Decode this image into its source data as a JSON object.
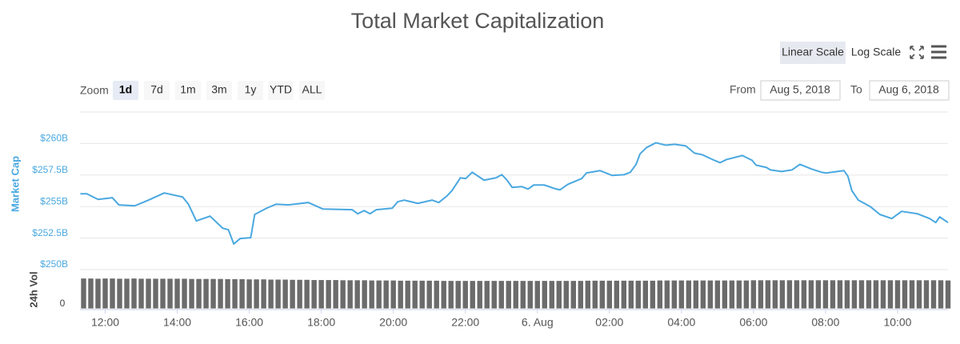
{
  "chart_data": {
    "type": "line",
    "title": "Total Market Capitalization",
    "y_label": "Market Cap",
    "color": "#4aa8e0",
    "grid": true,
    "xlim": [
      11.3,
      35.4
    ],
    "ylim": [
      250,
      262.5
    ],
    "yticks": [
      {
        "value": 250,
        "label": "$250B"
      },
      {
        "value": 252.5,
        "label": "$252.5B"
      },
      {
        "value": 255,
        "label": "$255B"
      },
      {
        "value": 257.5,
        "label": "$257.5B"
      },
      {
        "value": 260,
        "label": "$260B"
      }
    ],
    "xticks": [
      {
        "value": 12,
        "label": "12:00"
      },
      {
        "value": 14,
        "label": "14:00"
      },
      {
        "value": 16,
        "label": "16:00"
      },
      {
        "value": 18,
        "label": "18:00"
      },
      {
        "value": 20,
        "label": "20:00"
      },
      {
        "value": 22,
        "label": "22:00"
      },
      {
        "value": 24,
        "label": "6. Aug"
      },
      {
        "value": 26,
        "label": "02:00"
      },
      {
        "value": 28,
        "label": "04:00"
      },
      {
        "value": 30,
        "label": "06:00"
      },
      {
        "value": 32,
        "label": "08:00"
      },
      {
        "value": 34,
        "label": "10:00"
      }
    ],
    "x": [
      11.31,
      11.49,
      11.8,
      12.2,
      12.38,
      12.82,
      13.2,
      13.64,
      14.15,
      14.31,
      14.53,
      14.91,
      15.26,
      15.42,
      15.57,
      15.75,
      16.04,
      16.15,
      16.48,
      16.75,
      17.08,
      17.64,
      18.04,
      18.86,
      19.01,
      19.19,
      19.35,
      19.53,
      19.97,
      20.12,
      20.3,
      20.68,
      21.08,
      21.26,
      21.48,
      21.63,
      21.86,
      22.01,
      22.19,
      22.52,
      22.85,
      23.01,
      23.14,
      23.3,
      23.57,
      23.74,
      23.9,
      24.19,
      24.52,
      24.63,
      24.85,
      25.23,
      25.36,
      25.74,
      26.07,
      26.41,
      26.58,
      26.74,
      26.85,
      27.03,
      27.29,
      27.56,
      27.81,
      28.12,
      28.36,
      28.58,
      28.91,
      29.07,
      29.25,
      29.69,
      29.96,
      30.07,
      30.36,
      30.47,
      30.78,
      31.07,
      31.29,
      31.62,
      31.89,
      32.02,
      32.51,
      32.62,
      32.73,
      32.91,
      33.24,
      33.51,
      33.84,
      34.11,
      34.55,
      34.89,
      35.06,
      35.17,
      35.4
    ],
    "values": [
      256.01,
      256.01,
      255.57,
      255.7,
      255.13,
      255.06,
      255.51,
      256.08,
      255.76,
      255.19,
      253.86,
      254.24,
      253.29,
      253.16,
      252.03,
      252.47,
      252.53,
      254.37,
      254.87,
      255.19,
      255.13,
      255.32,
      254.81,
      254.75,
      254.43,
      254.68,
      254.43,
      254.75,
      254.87,
      255.38,
      255.51,
      255.25,
      255.51,
      255.32,
      255.82,
      256.27,
      257.28,
      257.22,
      257.72,
      257.09,
      257.28,
      257.53,
      257.15,
      256.52,
      256.58,
      256.39,
      256.71,
      256.71,
      256.39,
      256.33,
      256.77,
      257.22,
      257.66,
      257.85,
      257.47,
      257.53,
      257.72,
      258.35,
      259.18,
      259.68,
      260.06,
      259.87,
      259.94,
      259.81,
      259.24,
      259.11,
      258.67,
      258.48,
      258.73,
      259.05,
      258.67,
      258.29,
      258.1,
      257.91,
      257.78,
      257.91,
      258.35,
      257.97,
      257.72,
      257.66,
      257.85,
      257.41,
      256.27,
      255.51,
      255,
      254.37,
      254.05,
      254.62,
      254.43,
      254.05,
      253.73,
      254.18,
      253.73
    ],
    "volume": {
      "title": "24h Vol",
      "color": "#6b6b6b",
      "ylim": [
        0,
        15
      ],
      "yticks": [
        0
      ],
      "x": [
        11.4,
        11.6,
        11.8,
        12,
        12.2,
        12.4,
        12.6,
        12.8,
        13,
        13.2,
        13.4,
        13.6,
        13.8,
        14,
        14.2,
        14.4,
        14.6,
        14.8,
        15,
        15.2,
        15.4,
        15.6,
        15.8,
        16,
        16.2,
        16.4,
        16.6,
        16.8,
        17,
        17.2,
        17.4,
        17.6,
        17.8,
        18,
        18.2,
        18.4,
        18.6,
        18.8,
        19,
        19.2,
        19.4,
        19.6,
        19.8,
        20,
        20.2,
        20.4,
        20.6,
        20.8,
        21,
        21.2,
        21.4,
        21.6,
        21.8,
        22,
        22.2,
        22.4,
        22.6,
        22.8,
        23,
        23.2,
        23.4,
        23.6,
        23.8,
        24,
        24.2,
        24.4,
        24.6,
        24.8,
        25,
        25.2,
        25.4,
        25.6,
        25.8,
        26,
        26.2,
        26.4,
        26.6,
        26.8,
        27,
        27.2,
        27.4,
        27.6,
        27.8,
        28,
        28.2,
        28.4,
        28.6,
        28.8,
        29,
        29.2,
        29.4,
        29.6,
        29.8,
        30,
        30.2,
        30.4,
        30.6,
        30.8,
        31,
        31.2,
        31.4,
        31.6,
        31.8,
        32,
        32.2,
        32.4,
        32.6,
        32.8,
        33,
        33.2,
        33.4,
        33.6,
        33.8,
        34,
        34.2,
        34.4,
        34.6,
        34.8,
        35,
        35.2,
        35.4
      ],
      "values": [
        14.0,
        14.0,
        13.9,
        14.0,
        14.0,
        13.9,
        13.9,
        14.0,
        13.9,
        13.9,
        13.9,
        13.9,
        13.9,
        13.9,
        13.9,
        13.8,
        13.8,
        13.8,
        13.8,
        13.8,
        13.7,
        13.7,
        13.7,
        13.6,
        13.6,
        13.6,
        13.5,
        13.5,
        13.5,
        13.4,
        13.4,
        13.4,
        13.3,
        13.3,
        13.3,
        13.3,
        13.2,
        13.2,
        13.2,
        13.2,
        13.1,
        13.1,
        13.1,
        13.1,
        13.0,
        13.0,
        13.0,
        13.0,
        13.0,
        13.0,
        12.9,
        12.9,
        12.9,
        12.9,
        12.9,
        12.9,
        12.9,
        12.9,
        12.9,
        12.9,
        12.9,
        12.9,
        12.9,
        12.9,
        12.9,
        12.9,
        12.9,
        12.9,
        12.9,
        12.9,
        13.0,
        13.0,
        13.0,
        13.0,
        13.0,
        13.0,
        13.0,
        13.0,
        13.0,
        13.0,
        13.1,
        13.1,
        13.1,
        13.1,
        13.1,
        13.1,
        13.1,
        13.1,
        13.1,
        13.1,
        13.1,
        13.1,
        13.1,
        13.2,
        13.2,
        13.2,
        13.2,
        13.2,
        13.2,
        13.2,
        13.2,
        13.2,
        13.2,
        13.2,
        13.2,
        13.2,
        13.2,
        13.2,
        13.2,
        13.2,
        13.2,
        13.2,
        13.2,
        13.2,
        13.2,
        13.2,
        13.2,
        13.2,
        13.2,
        13.2,
        13.1
      ]
    }
  },
  "controls": {
    "scale_buttons": [
      "Linear Scale",
      "Log Scale"
    ],
    "active_scale": 0,
    "zoom_label": "Zoom",
    "zoom_buttons": [
      "1d",
      "7d",
      "1m",
      "3m",
      "1y",
      "YTD",
      "ALL"
    ],
    "active_zoom": 0,
    "from_label": "From",
    "from_value": "Aug 5, 2018",
    "to_label": "To",
    "to_value": "Aug 6, 2018"
  }
}
